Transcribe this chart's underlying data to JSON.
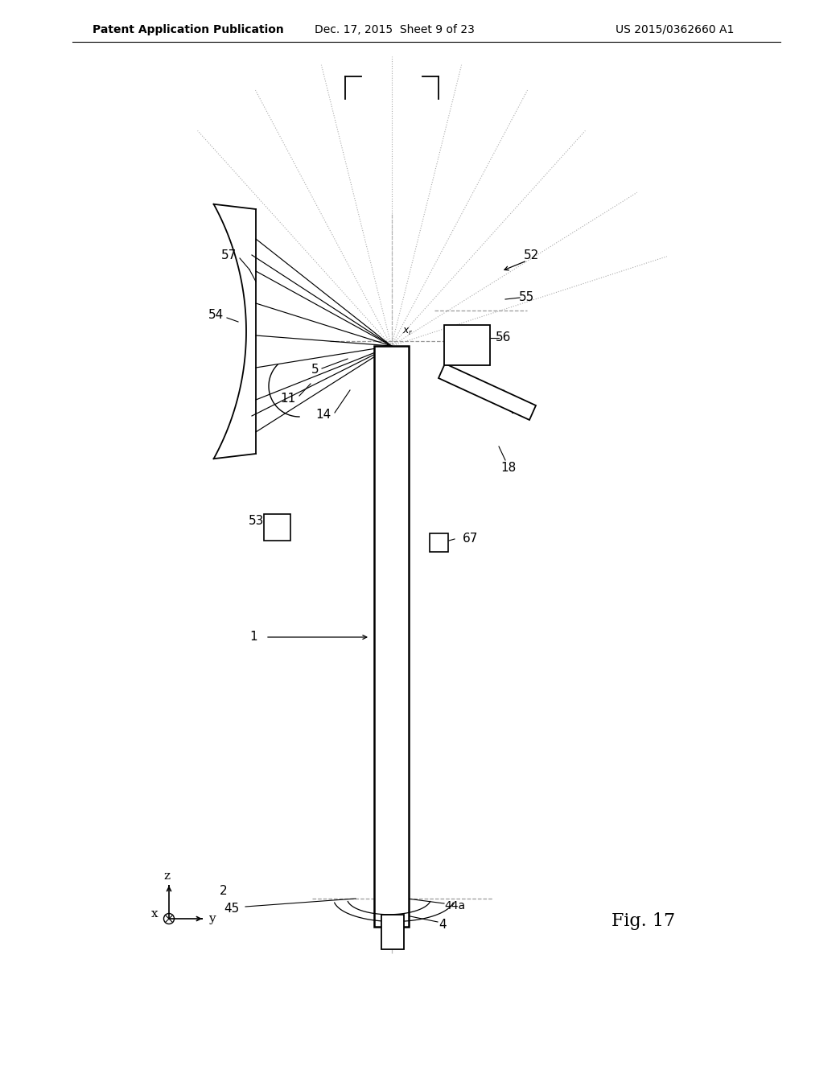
{
  "header_left": "Patent Application Publication",
  "header_mid": "Dec. 17, 2015  Sheet 9 of 23",
  "header_right": "US 2015/0362660 A1",
  "fig_label": "Fig. 17",
  "bg_color": "#ffffff",
  "line_color": "#000000",
  "gray_color": "#888888",
  "light_gray": "#aaaaaa",
  "dashed_color": "#999999"
}
